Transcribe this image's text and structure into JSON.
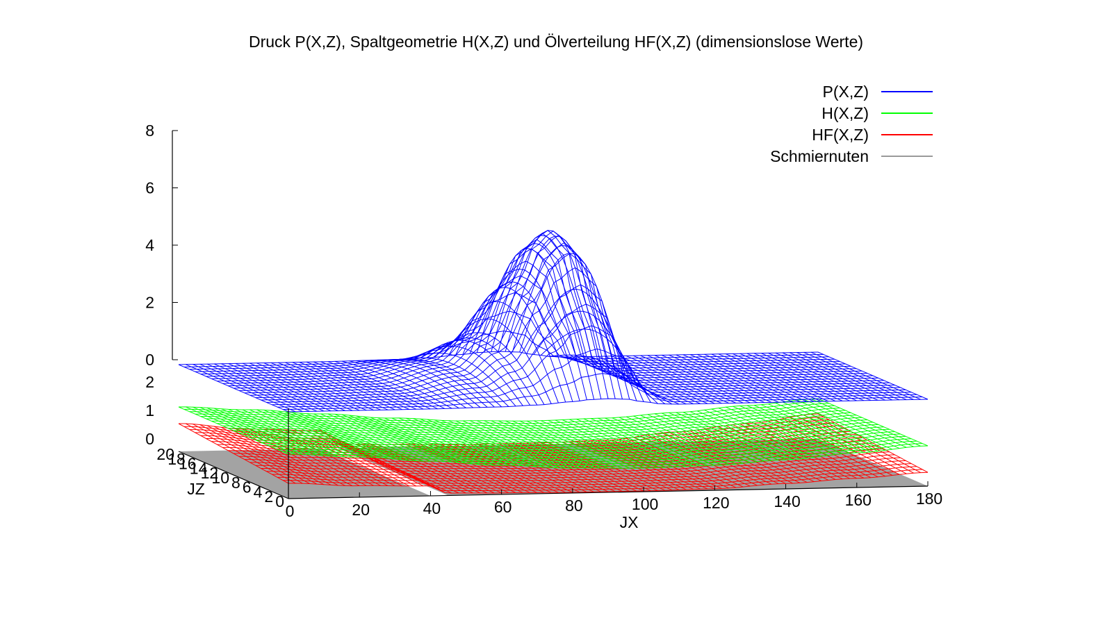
{
  "chart_data": {
    "type": "surface3d",
    "title": "Druck P(X,Z), Spaltgeometrie H(X,Z) und Ölverteilung HF(X,Z) (dimensionslose Werte)",
    "xlabel": "JX",
    "ylabel": "JZ",
    "xlim": [
      0,
      180
    ],
    "zlim_pressure": [
      0,
      8
    ],
    "zlim_gap": [
      0,
      2
    ],
    "x_ticks": [
      0,
      20,
      40,
      60,
      80,
      100,
      120,
      140,
      160,
      180
    ],
    "x_tick_labels": [
      "0",
      "20",
      "40",
      "60",
      "80",
      "100",
      "120",
      "140",
      "160",
      "180"
    ],
    "y_tick_labels": [
      "0",
      "2",
      "4",
      "6",
      "8",
      "10",
      "12",
      "14",
      "16",
      "18",
      "20"
    ],
    "z_ticks_pressure": [
      0,
      2,
      4,
      6,
      8
    ],
    "z_tick_labels_pressure": [
      "0",
      "2",
      "4",
      "6",
      "8"
    ],
    "z_ticks_gap": [
      0,
      1,
      2
    ],
    "z_tick_labels_gap": [
      "0",
      "1",
      "2"
    ],
    "grid": false,
    "legend_position": "top-right",
    "series": [
      {
        "name": "P(X,Z)",
        "color": "#0000ff",
        "description_peak": {
          "x": 90,
          "value": 5.3
        },
        "x": [
          0,
          20,
          40,
          60,
          70,
          80,
          85,
          90,
          95,
          100,
          105,
          110,
          120,
          140,
          160,
          180
        ],
        "values": [
          0,
          0,
          0.05,
          0.6,
          1.5,
          3.5,
          4.8,
          5.3,
          4.7,
          2.4,
          0.5,
          0,
          0,
          0,
          0,
          0
        ]
      },
      {
        "name": "H(X,Z)",
        "color": "#00ff00",
        "x": [
          0,
          20,
          40,
          60,
          80,
          100,
          120,
          140,
          160,
          180
        ],
        "values": [
          1.6,
          1.45,
          1.25,
          1.05,
          0.9,
          0.85,
          0.9,
          1.05,
          1.25,
          1.45
        ]
      },
      {
        "name": "HF(X,Z)",
        "color": "#ff0000",
        "x": [
          0,
          20,
          40,
          45,
          60,
          80,
          100,
          120,
          140,
          160,
          180
        ],
        "values": [
          1.0,
          0.75,
          0.65,
          0.15,
          0.1,
          0.05,
          0.05,
          0.1,
          0.35,
          0.6,
          0.9
        ]
      },
      {
        "name": "Schmiernuten",
        "color": "#999999",
        "x": [
          0,
          40,
          45,
          180
        ],
        "values": [
          0,
          0,
          0,
          0
        ]
      }
    ]
  }
}
